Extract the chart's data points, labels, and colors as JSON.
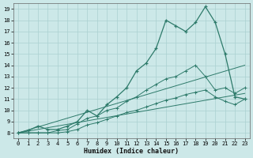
{
  "xlabel": "Humidex (Indice chaleur)",
  "ylabel": "",
  "bg_color": "#cce8e8",
  "grid_color": "#aad0d0",
  "line_color": "#2d7a6a",
  "xmin": 0,
  "xmax": 23,
  "ymin": 8,
  "ymax": 19,
  "x_ticks": [
    0,
    1,
    2,
    3,
    4,
    5,
    6,
    7,
    8,
    9,
    10,
    11,
    12,
    13,
    14,
    15,
    16,
    17,
    18,
    19,
    20,
    21,
    22,
    23
  ],
  "y_ticks": [
    8,
    9,
    10,
    11,
    12,
    13,
    14,
    15,
    16,
    17,
    18,
    19
  ],
  "line1_y": [
    8.0,
    8.2,
    8.6,
    8.3,
    8.3,
    8.6,
    9.0,
    10.0,
    9.5,
    10.5,
    11.2,
    12.0,
    13.5,
    14.2,
    15.5,
    18.0,
    17.5,
    17.0,
    17.8,
    19.2,
    17.8,
    15.0,
    11.2,
    11.0
  ],
  "line2_y": [
    8.0,
    8.0,
    8.0,
    8.0,
    8.2,
    8.3,
    8.8,
    9.3,
    9.5,
    10.0,
    10.2,
    10.8,
    11.2,
    11.8,
    12.3,
    12.8,
    13.0,
    13.5,
    14.0,
    13.0,
    11.8,
    12.0,
    11.5,
    12.0
  ],
  "line3_y": [
    8.0,
    8.0,
    8.0,
    8.0,
    8.0,
    8.1,
    8.3,
    8.7,
    8.9,
    9.2,
    9.5,
    9.8,
    10.0,
    10.3,
    10.6,
    10.9,
    11.1,
    11.4,
    11.6,
    11.8,
    11.2,
    10.8,
    10.5,
    11.0
  ],
  "line4_y": [
    8.0,
    14.0
  ],
  "line5_y": [
    8.0,
    11.5
  ],
  "marker": "+"
}
